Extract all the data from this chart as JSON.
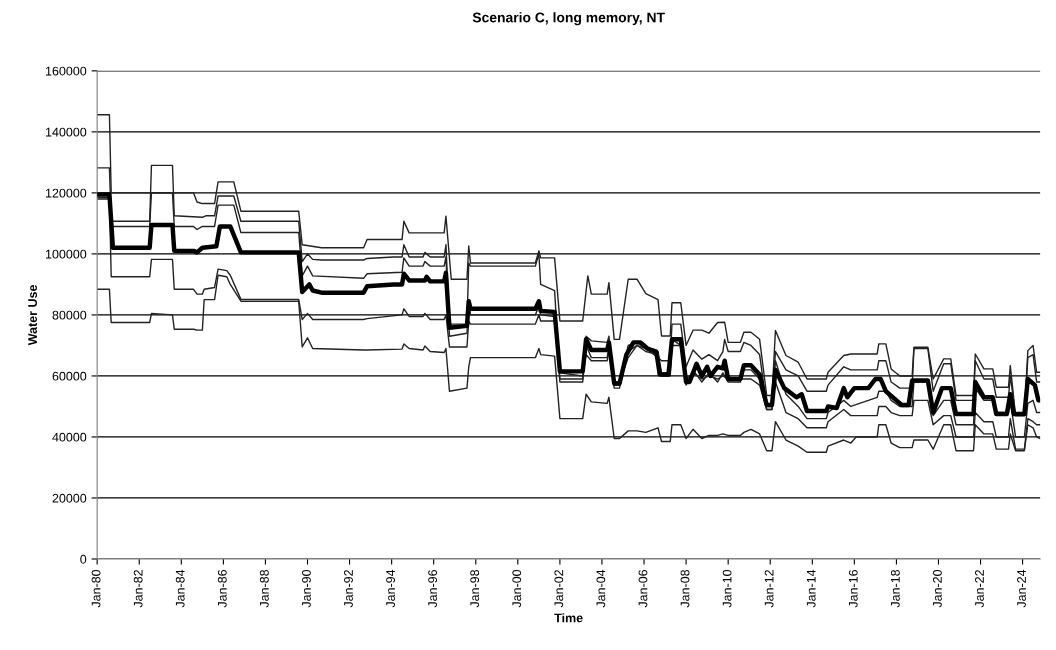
{
  "chart_data": {
    "type": "line",
    "title": "Scenario C, long memory, NT",
    "xlabel": "Time",
    "ylabel": "Water Use",
    "xlim": [
      "1980-01",
      "2024-11"
    ],
    "xticks": [
      {
        "value": "1980-01",
        "label": "Jan-80"
      },
      {
        "value": "1982-01",
        "label": "Jan-82"
      },
      {
        "value": "1984-01",
        "label": "Jan-84"
      },
      {
        "value": "1986-01",
        "label": "Jan-86"
      },
      {
        "value": "1988-01",
        "label": "Jan-88"
      },
      {
        "value": "1990-01",
        "label": "Jan-90"
      },
      {
        "value": "1992-01",
        "label": "Jan-92"
      },
      {
        "value": "1994-01",
        "label": "Jan-94"
      },
      {
        "value": "1996-01",
        "label": "Jan-96"
      },
      {
        "value": "1998-01",
        "label": "Jan-98"
      },
      {
        "value": "2000-01",
        "label": "Jan-00"
      },
      {
        "value": "2002-01",
        "label": "Jan-02"
      },
      {
        "value": "2004-01",
        "label": "Jan-04"
      },
      {
        "value": "2006-01",
        "label": "Jan-06"
      },
      {
        "value": "2008-01",
        "label": "Jan-08"
      },
      {
        "value": "2010-01",
        "label": "Jan-10"
      },
      {
        "value": "2012-01",
        "label": "Jan-12"
      },
      {
        "value": "2014-01",
        "label": "Jan-14"
      },
      {
        "value": "2016-01",
        "label": "Jan-16"
      },
      {
        "value": "2018-01",
        "label": "Jan-18"
      },
      {
        "value": "2020-01",
        "label": "Jan-20"
      },
      {
        "value": "2022-01",
        "label": "Jan-22"
      },
      {
        "value": "2024-01",
        "label": "Jan-24"
      }
    ],
    "ylim": [
      0,
      160000
    ],
    "yticks": [
      0,
      20000,
      40000,
      60000,
      80000,
      100000,
      120000,
      140000,
      160000
    ],
    "grid": "y",
    "marker": "none",
    "line_style": "solid",
    "series": [
      {
        "color": "#222222",
        "x": [
          "1980-01",
          "1980-08",
          "1980-09",
          "1984-08",
          "1984-10",
          "1985-01",
          "1985-08",
          "1985-10",
          "1986-07",
          "1986-11",
          "1989-08",
          "1989-10",
          "1990-09",
          "1992-09",
          "1992-11",
          "1994-07",
          "1994-08",
          "1994-11",
          "1996-07",
          "1996-08",
          "1996-11",
          "1997-08",
          "1997-09",
          "1997-10",
          "2000-11",
          "2001-01",
          "2001-02",
          "2001-10",
          "2002-01",
          "2003-02",
          "2003-05",
          "2003-07",
          "2004-04",
          "2004-05",
          "2004-08",
          "2004-11",
          "2005-04",
          "2005-09",
          "2006-02",
          "2006-09",
          "2006-11",
          "2007-04",
          "2007-05",
          "2007-10",
          "2008-01",
          "2008-05",
          "2008-10",
          "2009-02",
          "2009-07",
          "2009-11",
          "2010-01",
          "2010-08",
          "2010-10",
          "2011-02",
          "2011-07",
          "2011-11",
          "2012-02",
          "2012-04",
          "2012-10",
          "2013-05",
          "2013-10",
          "2014-09",
          "2014-10",
          "2015-07",
          "2015-11",
          "2017-02",
          "2017-03",
          "2017-07",
          "2017-10",
          "2018-03",
          "2018-10",
          "2018-11",
          "2019-07",
          "2019-10",
          "2020-04",
          "2020-08",
          "2020-11",
          "2021-09",
          "2021-10",
          "2022-03",
          "2022-08",
          "2022-10",
          "2023-05",
          "2023-06",
          "2023-09",
          "2024-02",
          "2024-04",
          "2024-07",
          "2024-09",
          "2024-11"
        ],
        "values": [
          145600,
          145600,
          120000,
          120000,
          117000,
          116500,
          116500,
          123600,
          123600,
          114000,
          114000,
          103000,
          102000,
          102000,
          104700,
          104700,
          110700,
          106900,
          106900,
          112400,
          91700,
          91700,
          102600,
          97000,
          97000,
          101000,
          98700,
          98700,
          78000,
          78000,
          92800,
          86800,
          86800,
          90600,
          72000,
          72000,
          91700,
          91700,
          87000,
          85000,
          73100,
          73100,
          84000,
          84000,
          70000,
          75000,
          75000,
          74000,
          77500,
          77600,
          71000,
          71000,
          74300,
          74300,
          72000,
          53600,
          53600,
          74900,
          66700,
          64500,
          59000,
          59000,
          61200,
          66700,
          67200,
          67200,
          70500,
          70500,
          62300,
          60000,
          60000,
          69400,
          69400,
          59000,
          65600,
          65600,
          53600,
          53600,
          67200,
          62300,
          62300,
          56300,
          56300,
          63400,
          47000,
          47000,
          68300,
          70000,
          61200,
          61200
        ]
      },
      {
        "color": "#222222",
        "x": [
          "1980-01",
          "1980-08",
          "1980-09",
          "1982-07",
          "1982-08",
          "1983-08",
          "1983-09",
          "1985-01",
          "1985-03",
          "1985-08",
          "1985-10",
          "1986-07",
          "1986-11",
          "1989-08",
          "1989-10",
          "1990-01",
          "1990-04",
          "1990-09",
          "1992-09",
          "1992-11",
          "1994-02",
          "1994-07",
          "1994-08",
          "1994-11",
          "1995-07",
          "1995-08",
          "1995-11",
          "1996-07",
          "1996-08",
          "1996-10",
          "1997-08",
          "1997-09",
          "1997-10",
          "2000-11",
          "2001-01",
          "2001-02",
          "2001-10",
          "2002-01",
          "2003-02",
          "2003-04",
          "2003-07",
          "2004-04",
          "2004-05",
          "2004-08",
          "2004-11",
          "2005-04",
          "2005-09",
          "2006-02",
          "2006-09",
          "2006-11",
          "2007-04",
          "2007-05",
          "2007-10",
          "2008-01",
          "2008-05",
          "2008-10",
          "2009-02",
          "2009-07",
          "2009-10",
          "2009-11",
          "2010-01",
          "2010-08",
          "2010-10",
          "2011-02",
          "2011-07",
          "2011-11",
          "2012-02",
          "2012-04",
          "2012-10",
          "2013-05",
          "2013-10",
          "2014-09",
          "2014-10",
          "2015-07",
          "2015-11",
          "2017-02",
          "2017-03",
          "2017-07",
          "2017-10",
          "2018-03",
          "2018-10",
          "2018-11",
          "2019-07",
          "2019-10",
          "2020-04",
          "2020-08",
          "2020-11",
          "2021-09",
          "2021-10",
          "2022-03",
          "2022-08",
          "2022-10",
          "2023-05",
          "2023-06",
          "2023-09",
          "2024-02",
          "2024-04",
          "2024-07",
          "2024-09",
          "2024-11"
        ],
        "values": [
          128200,
          128200,
          110700,
          110700,
          129000,
          129000,
          112500,
          112000,
          112500,
          112500,
          119000,
          119000,
          110700,
          110700,
          97500,
          100000,
          98200,
          98000,
          98000,
          98500,
          99000,
          99000,
          103000,
          99000,
          99000,
          100500,
          99000,
          99000,
          103000,
          77000,
          77000,
          97000,
          96000,
          96000,
          100000,
          90000,
          88000,
          59000,
          59000,
          73000,
          71500,
          71000,
          73000,
          57000,
          57000,
          70000,
          71000,
          69000,
          66000,
          65000,
          65000,
          77000,
          77000,
          63000,
          68500,
          65500,
          67000,
          65000,
          68000,
          72000,
          68000,
          68000,
          71000,
          70000,
          67000,
          50000,
          50000,
          68000,
          62000,
          60000,
          55000,
          55000,
          57000,
          63000,
          62000,
          62000,
          65000,
          65000,
          58000,
          56000,
          56000,
          69000,
          69000,
          55000,
          64000,
          64000,
          52000,
          52000,
          65000,
          59000,
          59000,
          53000,
          53000,
          60000,
          47000,
          47000,
          66000,
          67000,
          58000,
          58000
        ]
      },
      {
        "color": "#000000",
        "x": [
          "1980-01",
          "1980-08",
          "1980-10",
          "1982-07",
          "1982-08",
          "1983-08",
          "1983-09",
          "1984-08",
          "1984-10",
          "1985-01",
          "1985-09",
          "1985-11",
          "1986-05",
          "1986-11",
          "1989-08",
          "1989-10",
          "1990-02",
          "1990-04",
          "1990-09",
          "1992-09",
          "1992-11",
          "1994-02",
          "1994-07",
          "1994-08",
          "1994-11",
          "1995-08",
          "1995-09",
          "1995-11",
          "1996-07",
          "1996-08",
          "1996-10",
          "1997-08",
          "1997-09",
          "1997-10",
          "2000-11",
          "2001-01",
          "2001-02",
          "2001-10",
          "2002-01",
          "2003-02",
          "2003-04",
          "2003-07",
          "2004-04",
          "2004-05",
          "2004-08",
          "2004-11",
          "2005-03",
          "2005-07",
          "2005-11",
          "2006-03",
          "2006-08",
          "2006-10",
          "2007-03",
          "2007-05",
          "2007-10",
          "2008-01",
          "2008-03",
          "2008-07",
          "2008-10",
          "2009-01",
          "2009-03",
          "2009-07",
          "2009-10",
          "2009-11",
          "2010-01",
          "2010-08",
          "2010-10",
          "2011-02",
          "2011-07",
          "2011-11",
          "2012-02",
          "2012-04",
          "2012-09",
          "2013-04",
          "2013-07",
          "2013-10",
          "2014-09",
          "2014-10",
          "2015-03",
          "2015-07",
          "2015-09",
          "2016-01",
          "2016-09",
          "2017-01",
          "2017-04",
          "2017-07",
          "2018-01",
          "2018-04",
          "2018-08",
          "2018-10",
          "2019-07",
          "2019-10",
          "2020-03",
          "2020-08",
          "2020-11",
          "2021-09",
          "2021-10",
          "2022-03",
          "2022-08",
          "2022-10",
          "2023-04",
          "2023-06",
          "2023-08",
          "2024-02",
          "2024-04",
          "2024-08",
          "2024-10",
          "2024-11"
        ],
        "values": [
          119500,
          119500,
          102000,
          102000,
          109500,
          109500,
          101000,
          101000,
          100500,
          102000,
          102500,
          109000,
          109000,
          100500,
          100500,
          87500,
          90000,
          88000,
          87300,
          87300,
          89400,
          90000,
          90000,
          93500,
          91300,
          91300,
          92500,
          91000,
          91000,
          93800,
          75800,
          76400,
          84500,
          82000,
          82000,
          84500,
          81300,
          81000,
          61500,
          61500,
          72000,
          68500,
          68500,
          71000,
          57500,
          57500,
          67000,
          71000,
          71000,
          69000,
          68000,
          60500,
          60500,
          72000,
          72000,
          58000,
          58000,
          64000,
          60000,
          63000,
          60000,
          63000,
          62500,
          65000,
          59000,
          59000,
          63500,
          63500,
          60500,
          50500,
          50500,
          62000,
          56000,
          53000,
          54000,
          48500,
          48500,
          50000,
          49500,
          56000,
          53000,
          56000,
          56000,
          59000,
          59000,
          55000,
          52000,
          50500,
          50500,
          58500,
          58500,
          48000,
          56000,
          56000,
          47500,
          47500,
          58000,
          53000,
          53000,
          47500,
          47500,
          54000,
          47500,
          47500,
          59000,
          57000,
          52000,
          52000
        ]
      },
      {
        "color": "#222222",
        "x": [
          "1980-01",
          "1980-08",
          "1980-09",
          "1982-07",
          "1982-08",
          "1983-08",
          "1983-09",
          "1984-08",
          "1984-10",
          "1985-01",
          "1985-08",
          "1985-10",
          "1986-07",
          "1986-11",
          "1989-08",
          "1989-10",
          "1990-01",
          "1990-04",
          "1992-09",
          "1992-11",
          "1994-07",
          "1994-08",
          "1994-11",
          "1995-07",
          "1995-08",
          "1995-11",
          "1996-07",
          "1996-08",
          "1996-10",
          "1997-08",
          "1997-09",
          "1997-10",
          "2000-11",
          "2001-01",
          "2001-02",
          "2001-10",
          "2002-01",
          "2003-02",
          "2003-04",
          "2003-07",
          "2004-04",
          "2004-05",
          "2004-08",
          "2004-11",
          "2005-04",
          "2005-09",
          "2006-02",
          "2006-09",
          "2006-11",
          "2007-04",
          "2007-05",
          "2007-10",
          "2008-01",
          "2008-05",
          "2008-10",
          "2009-02",
          "2009-07",
          "2009-10",
          "2010-01",
          "2010-08",
          "2010-10",
          "2011-02",
          "2011-07",
          "2011-11",
          "2012-02",
          "2012-04",
          "2012-10",
          "2013-05",
          "2013-10",
          "2014-09",
          "2014-10",
          "2015-07",
          "2015-11",
          "2017-02",
          "2017-03",
          "2017-07",
          "2017-10",
          "2018-03",
          "2018-10",
          "2018-11",
          "2019-07",
          "2019-10",
          "2020-04",
          "2020-08",
          "2020-11",
          "2021-09",
          "2021-10",
          "2022-03",
          "2022-08",
          "2022-10",
          "2023-05",
          "2023-06",
          "2023-09",
          "2024-02",
          "2024-04",
          "2024-07",
          "2024-09",
          "2024-11"
        ],
        "values": [
          118000,
          118000,
          109000,
          109000,
          120000,
          120000,
          109000,
          109000,
          108000,
          109000,
          109000,
          116000,
          116000,
          107000,
          107000,
          92800,
          96000,
          92800,
          92000,
          93500,
          94000,
          98700,
          96000,
          96000,
          97500,
          96000,
          96000,
          99000,
          73000,
          74000,
          85000,
          80000,
          80000,
          83000,
          80000,
          79500,
          58000,
          58000,
          70000,
          66000,
          66000,
          70000,
          56000,
          56000,
          68000,
          70000,
          68000,
          67000,
          60000,
          60000,
          70000,
          70000,
          57000,
          62000,
          58000,
          61000,
          58000,
          61000,
          58000,
          58000,
          62000,
          62000,
          59000,
          49000,
          49000,
          65000,
          54000,
          50000,
          46000,
          46000,
          48000,
          52000,
          50000,
          53000,
          55000,
          55000,
          52000,
          50000,
          50000,
          58000,
          58000,
          47000,
          52000,
          52000,
          44000,
          44000,
          56000,
          52000,
          52000,
          48000,
          48000,
          52000,
          40000,
          40000,
          51000,
          52000,
          48000,
          48000
        ]
      },
      {
        "color": "#222222",
        "x": [
          "1980-01",
          "1980-08",
          "1980-09",
          "1982-07",
          "1982-08",
          "1983-08",
          "1983-09",
          "1984-08",
          "1984-10",
          "1985-01",
          "1985-02",
          "1985-08",
          "1985-10",
          "1986-03",
          "1986-05",
          "1986-11",
          "1989-08",
          "1989-10",
          "1990-01",
          "1990-04",
          "1992-09",
          "1992-11",
          "1994-07",
          "1994-08",
          "1994-11",
          "1995-07",
          "1995-08",
          "1995-11",
          "1996-07",
          "1996-08",
          "1996-10",
          "1997-08",
          "1997-09",
          "1997-10",
          "2000-11",
          "2001-01",
          "2001-02",
          "2001-10",
          "2002-01",
          "2003-02",
          "2003-04",
          "2003-07",
          "2004-04",
          "2004-05",
          "2004-08",
          "2004-11",
          "2005-04",
          "2005-09",
          "2006-02",
          "2006-09",
          "2006-11",
          "2007-04",
          "2007-05",
          "2007-10",
          "2008-01",
          "2008-05",
          "2008-10",
          "2009-02",
          "2009-07",
          "2009-10",
          "2010-01",
          "2010-08",
          "2010-10",
          "2011-02",
          "2011-07",
          "2011-11",
          "2012-02",
          "2012-04",
          "2012-10",
          "2013-05",
          "2013-10",
          "2014-09",
          "2014-10",
          "2015-07",
          "2015-11",
          "2017-02",
          "2017-03",
          "2017-07",
          "2017-10",
          "2018-03",
          "2018-10",
          "2018-11",
          "2019-07",
          "2019-10",
          "2020-04",
          "2020-08",
          "2020-11",
          "2021-09",
          "2021-10",
          "2022-03",
          "2022-08",
          "2022-10",
          "2023-05",
          "2023-06",
          "2023-09",
          "2024-02",
          "2024-04",
          "2024-07",
          "2024-09",
          "2024-11"
        ],
        "values": [
          118500,
          118500,
          92500,
          92500,
          98200,
          98200,
          88400,
          88400,
          86800,
          86800,
          88400,
          89000,
          95000,
          94500,
          93000,
          85100,
          85100,
          78500,
          80500,
          78500,
          78500,
          78800,
          80000,
          82000,
          79500,
          79500,
          80500,
          78500,
          78500,
          80000,
          69500,
          69500,
          78000,
          77000,
          77000,
          80000,
          78000,
          78000,
          61000,
          60000,
          67000,
          65000,
          65000,
          68000,
          58000,
          58000,
          66000,
          70000,
          69000,
          68000,
          61000,
          61000,
          72000,
          70000,
          59000,
          61000,
          59000,
          60000,
          59000,
          60000,
          59000,
          59000,
          59000,
          59000,
          57000,
          49000,
          49000,
          58000,
          48000,
          46000,
          43000,
          43000,
          45000,
          49000,
          47000,
          47000,
          50000,
          50000,
          48000,
          47000,
          47000,
          52000,
          52000,
          44000,
          47000,
          47000,
          40000,
          40000,
          48000,
          45000,
          45000,
          40000,
          40000,
          46000,
          36000,
          36000,
          46000,
          45000,
          44000,
          44000
        ]
      },
      {
        "color": "#222222",
        "x": [
          "1980-01",
          "1980-08",
          "1980-09",
          "1982-07",
          "1982-08",
          "1983-08",
          "1983-09",
          "1984-08",
          "1984-10",
          "1985-01",
          "1985-02",
          "1985-08",
          "1985-10",
          "1986-03",
          "1986-05",
          "1986-11",
          "1989-08",
          "1989-10",
          "1990-01",
          "1990-04",
          "1992-09",
          "1992-11",
          "1994-07",
          "1994-08",
          "1994-11",
          "1995-07",
          "1995-08",
          "1995-11",
          "1996-07",
          "1996-08",
          "1996-10",
          "1997-08",
          "1997-09",
          "1997-10",
          "2000-11",
          "2001-01",
          "2001-02",
          "2001-10",
          "2002-01",
          "2003-02",
          "2003-04",
          "2003-07",
          "2004-04",
          "2004-05",
          "2004-08",
          "2004-11",
          "2005-04",
          "2005-09",
          "2006-02",
          "2006-09",
          "2006-11",
          "2007-04",
          "2007-05",
          "2007-10",
          "2008-01",
          "2008-05",
          "2008-10",
          "2009-02",
          "2009-07",
          "2009-10",
          "2010-01",
          "2010-08",
          "2010-10",
          "2011-02",
          "2011-07",
          "2011-11",
          "2012-02",
          "2012-04",
          "2012-10",
          "2013-05",
          "2013-10",
          "2014-09",
          "2014-10",
          "2015-07",
          "2015-11",
          "2016-02",
          "2017-02",
          "2017-03",
          "2017-07",
          "2017-10",
          "2018-03",
          "2018-10",
          "2018-11",
          "2019-07",
          "2019-10",
          "2020-04",
          "2020-08",
          "2020-11",
          "2021-09",
          "2021-10",
          "2022-03",
          "2022-08",
          "2022-10",
          "2023-05",
          "2023-06",
          "2023-09",
          "2024-02",
          "2024-04",
          "2024-07",
          "2024-09",
          "2024-11"
        ],
        "values": [
          88400,
          88400,
          77500,
          77500,
          80500,
          80000,
          75300,
          75300,
          75000,
          75000,
          85000,
          85000,
          93000,
          92500,
          90000,
          84500,
          84500,
          69500,
          72500,
          69000,
          68500,
          68500,
          68800,
          70500,
          69000,
          68500,
          69800,
          68000,
          67700,
          69000,
          55000,
          56000,
          63000,
          66000,
          66000,
          69000,
          67000,
          66500,
          46000,
          46000,
          54000,
          51500,
          51000,
          53000,
          39500,
          39500,
          42000,
          42000,
          41500,
          43000,
          38500,
          38500,
          44000,
          44000,
          39500,
          42500,
          39500,
          40500,
          40500,
          41000,
          40500,
          40500,
          41500,
          42500,
          41000,
          35500,
          35500,
          45000,
          39000,
          37000,
          35000,
          35000,
          37000,
          39000,
          38000,
          40000,
          40000,
          44000,
          44000,
          38000,
          36500,
          36500,
          39000,
          39000,
          36000,
          44000,
          44000,
          35500,
          35500,
          44000,
          41000,
          41000,
          36000,
          36000,
          41000,
          35500,
          35500,
          44000,
          43000,
          40000,
          39500
        ]
      }
    ]
  }
}
